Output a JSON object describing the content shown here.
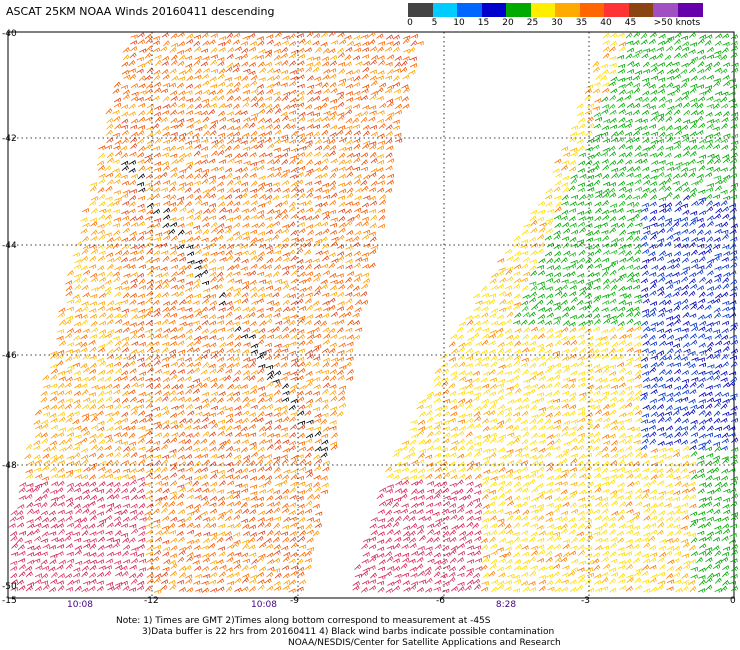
{
  "title": "ASCAT 25KM NOAA Winds 20160411 descending",
  "colorbar": {
    "labels": [
      "0",
      "5",
      "10",
      "15",
      "20",
      "25",
      "30",
      "35",
      "40",
      "45",
      ">50 knots"
    ],
    "colors": [
      "#444444",
      "#00ccff",
      "#0066ff",
      "#0000cc",
      "#00aa00",
      "#ffee00",
      "#ffaa00",
      "#ff6600",
      "#ff3333",
      "#8b4513",
      "#a050c0",
      "#6600aa"
    ]
  },
  "axes": {
    "lat_labels": [
      "-40",
      "-42",
      "-44",
      "-46",
      "-48",
      "-50"
    ],
    "lon_labels": [
      "-15",
      "-12",
      "-9",
      "-6",
      "-3",
      "0"
    ],
    "time_labels": [
      "10:08",
      "10:08",
      "8:28"
    ]
  },
  "notes": {
    "line1": "Note: 1) Times are GMT 2)Times along bottom correspond to measurement at -45S",
    "line2": "3)Data buffer is 22 hrs from 20160411 4) Black wind barbs indicate possible contamination",
    "line3": "NOAA/NESDIS/Center for Satellite Applications and Research"
  }
}
